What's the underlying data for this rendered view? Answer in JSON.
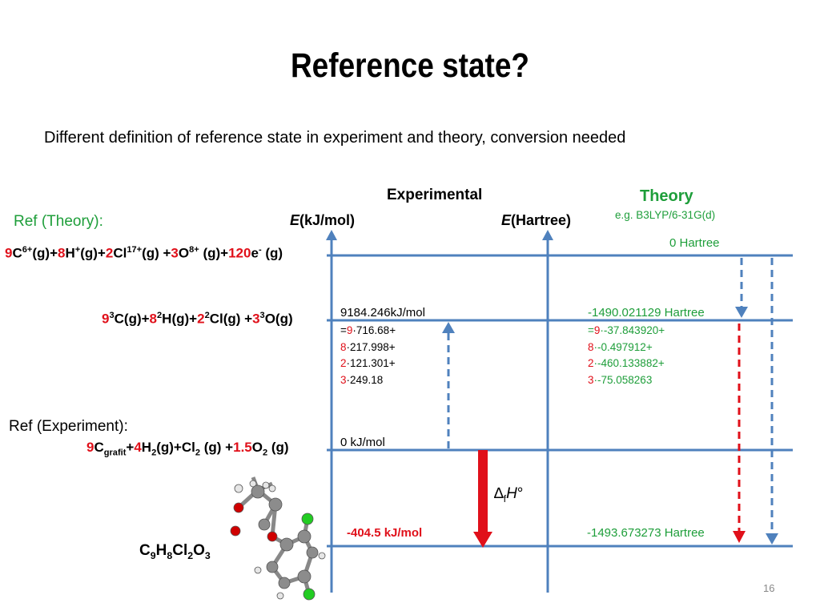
{
  "slide": {
    "title": "Reference state?",
    "subtitle": "Different definition of reference state in experiment and theory, conversion needed",
    "page_number": "16"
  },
  "headers": {
    "experimental": "Experimental",
    "theory": "Theory",
    "theory_method": "e.g. B3LYP/6-31G(d)",
    "axis_exp_var": "E",
    "axis_exp_unit": "(kJ/mol)",
    "axis_theory_var": "E",
    "axis_theory_unit": "(Hartree)"
  },
  "ref_labels": {
    "theory": "Ref (Theory):",
    "experiment": "Ref (Experiment):"
  },
  "levels": {
    "nuclei": {
      "coef_c": "9",
      "c": "C",
      "c_charge": "6+",
      "c_state": "(g)+",
      "coef_h": "8",
      "h": "H",
      "h_charge": "+",
      "h_state": "(g)+",
      "coef_cl": "2",
      "cl": "Cl",
      "cl_charge": "17+",
      "cl_state": "(g) +",
      "coef_o": "3",
      "o": "O",
      "o_charge": "8+",
      "o_state": " (g)+",
      "coef_e": "120",
      "e": "e",
      "e_charge": "-",
      "e_state": " (g)",
      "theory_value": "0 Hartree"
    },
    "atoms": {
      "coef_c": "9",
      "c_mult": "3",
      "c": "C(g)+",
      "coef_h": "8",
      "h_mult": "2",
      "h": "H(g)+",
      "coef_cl": "2",
      "cl_mult": "2",
      "cl": "Cl(g) +",
      "coef_o": "3",
      "o_mult": "3",
      "o": "O(g)",
      "exp_total": "9184.246kJ/mol",
      "exp_terms": [
        {
          "prefix": "=",
          "coef": "9",
          "rest": "·716.68+"
        },
        {
          "prefix": "",
          "coef": "8",
          "rest": "·217.998+"
        },
        {
          "prefix": "",
          "coef": "2",
          "rest": "·121.301+"
        },
        {
          "prefix": "",
          "coef": "3",
          "rest": "·249.18"
        }
      ],
      "theory_total": "-1490.021129 Hartree",
      "theory_terms": [
        {
          "prefix": "=",
          "coef": "9",
          "rest": "·-37.843920+"
        },
        {
          "prefix": "",
          "coef": "8",
          "rest": "·-0.497912+"
        },
        {
          "prefix": "",
          "coef": "2",
          "rest": "·-460.133882+"
        },
        {
          "prefix": "",
          "coef": "3",
          "rest": "·-75.058263"
        }
      ]
    },
    "elements": {
      "coef_c": "9",
      "c": "C",
      "c_sub": "grafit",
      "plus1": "+",
      "coef_h": "4",
      "h": "H",
      "h_sub": "2",
      "h_state": "(g)+Cl",
      "cl_sub": "2",
      "cl_state": " (g) +",
      "coef_o": "1.5",
      "o": "O",
      "o_sub": "2",
      "o_state": " (g)",
      "exp_value": "0 kJ/mol"
    },
    "molecule": {
      "f1": "C",
      "s1": "9",
      "f2": "H",
      "s2": "8",
      "f3": "Cl",
      "s3": "2",
      "f4": "O",
      "s4": "3",
      "exp_value": "-404.5 kJ/mol",
      "theory_value": "-1493.673273 Hartree",
      "delta_symbol": "∆",
      "delta_sub": "f",
      "delta_var": "H",
      "delta_deg": "°"
    }
  },
  "colors": {
    "axis": "#4f81bd",
    "red": "#e0101a",
    "green": "#1e9e3a",
    "atom_carbon": "#8c8c8c",
    "atom_hydrogen": "#e6e6e6",
    "atom_oxygen": "#d00000",
    "atom_chlorine": "#22cc22"
  }
}
